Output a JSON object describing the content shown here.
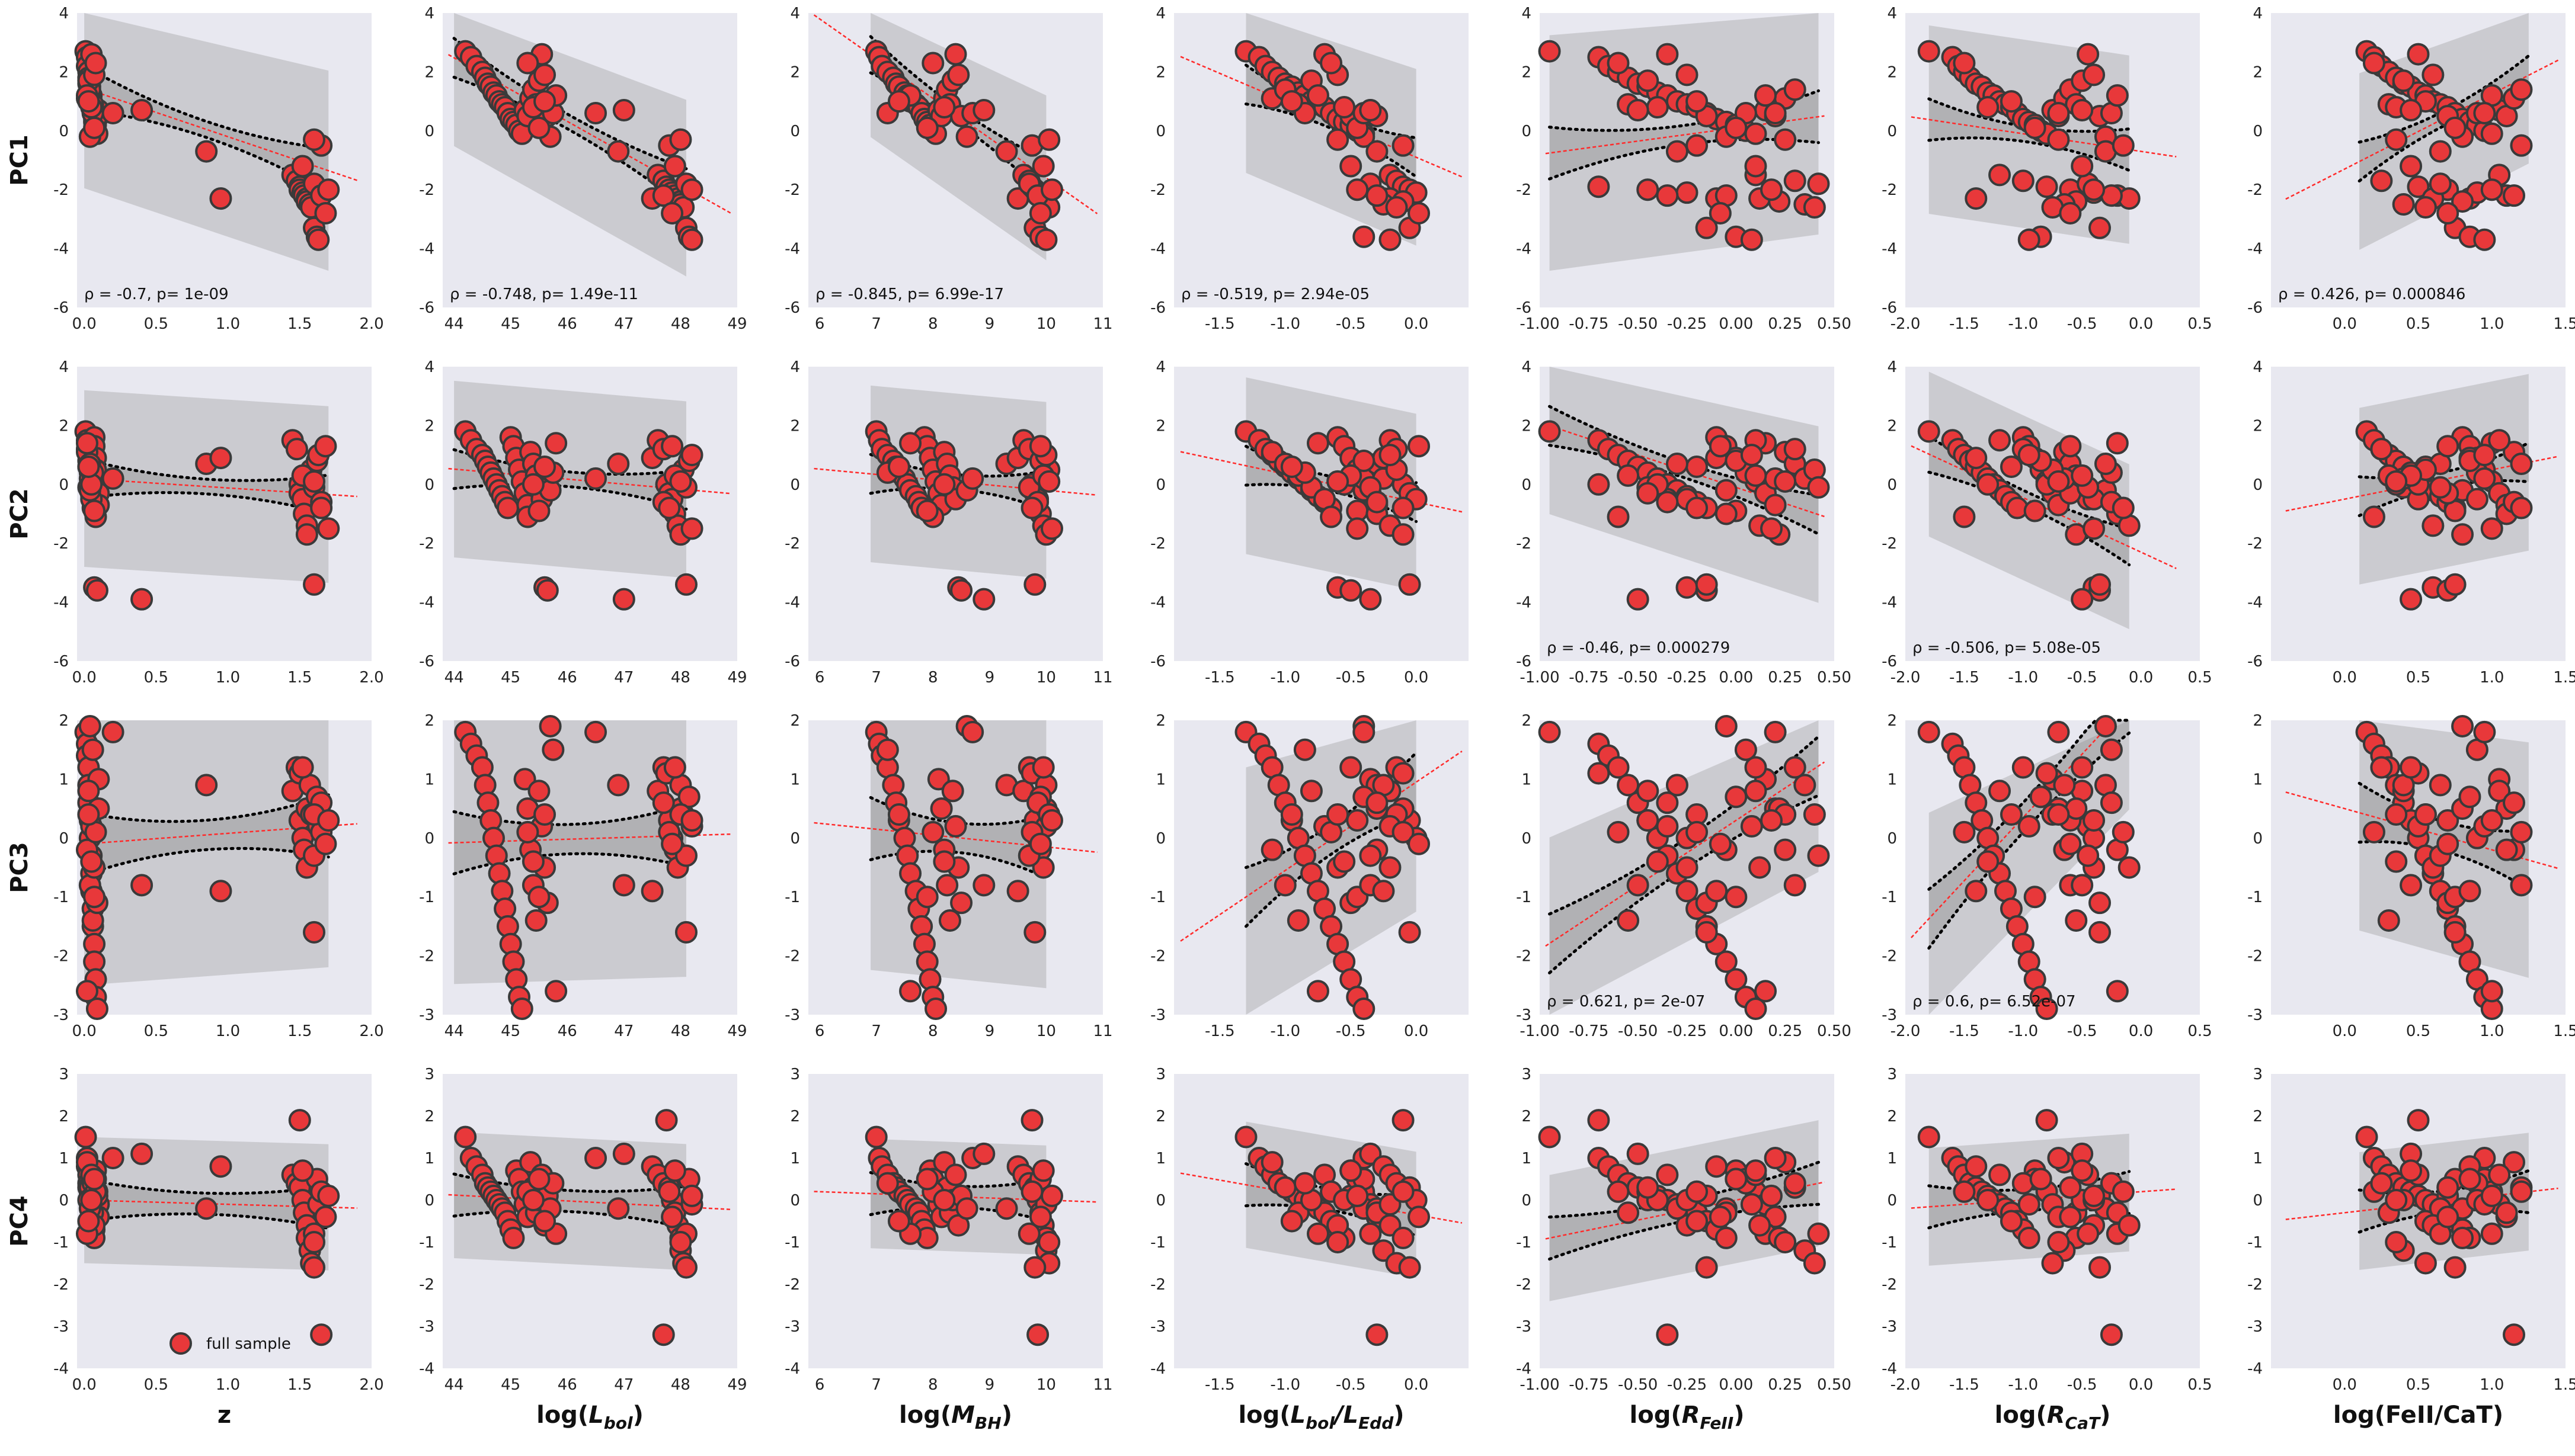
{
  "chart_data": {
    "type": "scatter",
    "layout": {
      "rows": 4,
      "cols": 7
    },
    "grid": true,
    "colors": {
      "background": "#e8e8f0",
      "marker": "#e8383a",
      "marker_edge": "#3a3a3a",
      "fit_line": "#ff2a2a",
      "band": "#a8a8a8",
      "confidence": "#000000"
    },
    "legend": {
      "label": "full sample",
      "placement": "bottom-center of PC4 vs z"
    },
    "columns": [
      {
        "xlabel": "z",
        "xlim": [
          -0.05,
          2.0
        ],
        "xticks": [
          "0.0",
          "0.5",
          "1.0",
          "1.5",
          "2.0"
        ],
        "xtick_values": [
          0,
          0.5,
          1,
          1.5,
          2
        ],
        "fit_range": [
          0,
          1.9
        ],
        "band_range": [
          0,
          1.7
        ]
      },
      {
        "xlabel": "log(L_bol)",
        "xlim": [
          43.8,
          49.0
        ],
        "xticks": [
          "44",
          "45",
          "46",
          "47",
          "48",
          "49"
        ],
        "xtick_values": [
          44,
          45,
          46,
          47,
          48,
          49
        ],
        "fit_range": [
          43.9,
          48.9
        ],
        "band_range": [
          44,
          48.1
        ]
      },
      {
        "xlabel": "log(M_BH)",
        "xlim": [
          5.8,
          11.0
        ],
        "xticks": [
          "6",
          "7",
          "8",
          "9",
          "10",
          "11"
        ],
        "xtick_values": [
          6,
          7,
          8,
          9,
          10,
          11
        ],
        "fit_range": [
          5.9,
          10.9
        ],
        "band_range": [
          6.9,
          10.0
        ]
      },
      {
        "xlabel": "log(L_bol/L_Edd)",
        "xlim": [
          -1.85,
          0.4
        ],
        "xticks": [
          "-1.5",
          "-1.0",
          "-0.5",
          "0.0"
        ],
        "xtick_values": [
          -1.5,
          -1.0,
          -0.5,
          0.0
        ],
        "fit_range": [
          -1.8,
          0.35
        ],
        "band_range": [
          -1.3,
          0.0
        ]
      },
      {
        "xlabel": "log(R_FeII)",
        "xlim": [
          -1.0,
          0.5
        ],
        "xticks": [
          "-1.00",
          "-0.75",
          "-0.50",
          "-0.25",
          "0.00",
          "0.25",
          "0.50"
        ],
        "xtick_values": [
          -1.0,
          -0.75,
          -0.5,
          -0.25,
          0.0,
          0.25,
          0.5
        ],
        "fit_range": [
          -0.97,
          0.45
        ],
        "band_range": [
          -0.95,
          0.42
        ]
      },
      {
        "xlabel": "log(R_CaT)",
        "xlim": [
          -2.0,
          0.5
        ],
        "xticks": [
          "-2.0",
          "-1.5",
          "-1.0",
          "-0.5",
          "0.0",
          "0.5"
        ],
        "xtick_values": [
          -2.0,
          -1.5,
          -1.0,
          -0.5,
          0.0,
          0.5
        ],
        "fit_range": [
          -1.95,
          0.3
        ],
        "band_range": [
          -1.8,
          -0.1
        ]
      },
      {
        "xlabel": "log(FeII/CaT)",
        "xlim": [
          -0.5,
          1.5
        ],
        "xticks": [
          "0.0",
          "0.5",
          "1.0",
          "1.5"
        ],
        "xtick_values": [
          0.0,
          0.5,
          1.0,
          1.5
        ],
        "fit_range": [
          -0.4,
          1.45
        ],
        "band_range": [
          0.1,
          1.25
        ]
      }
    ],
    "rows": [
      {
        "ylabel": "PC1",
        "ylim": [
          -6,
          4
        ],
        "yticks": [
          "-6",
          "-4",
          "-2",
          "0",
          "2",
          "4"
        ],
        "ytick_values": [
          -6,
          -4,
          -2,
          0,
          2,
          4
        ]
      },
      {
        "ylabel": "PC2",
        "ylim": [
          -6,
          4
        ],
        "yticks": [
          "-6",
          "-4",
          "-2",
          "0",
          "2",
          "4"
        ],
        "ytick_values": [
          -6,
          -4,
          -2,
          0,
          2,
          4
        ]
      },
      {
        "ylabel": "PC3",
        "ylim": [
          -3,
          2
        ],
        "yticks": [
          "-3",
          "-2",
          "-1",
          "0",
          "1",
          "2"
        ],
        "ytick_values": [
          -3,
          -2,
          -1,
          0,
          1,
          2
        ]
      },
      {
        "ylabel": "PC4",
        "ylim": [
          -4,
          3
        ],
        "yticks": [
          "-4",
          "-3",
          "-2",
          "-1",
          "0",
          "1",
          "2",
          "3"
        ],
        "ytick_values": [
          -4,
          -3,
          -2,
          -1,
          0,
          1,
          2,
          3
        ]
      }
    ],
    "annotations": [
      {
        "row": 0,
        "col": 0,
        "text": "ρ = -0.7, p= 1e-09"
      },
      {
        "row": 0,
        "col": 1,
        "text": "ρ = -0.748, p= 1.49e-11"
      },
      {
        "row": 0,
        "col": 2,
        "text": "ρ = -0.845, p= 6.99e-17"
      },
      {
        "row": 0,
        "col": 3,
        "text": "ρ = -0.519, p= 2.94e-05"
      },
      {
        "row": 0,
        "col": 6,
        "text": "ρ = 0.426, p= 0.000846"
      },
      {
        "row": 1,
        "col": 4,
        "text": "ρ = -0.46, p= 0.000279"
      },
      {
        "row": 1,
        "col": 5,
        "text": "ρ = -0.506, p= 5.08e-05"
      },
      {
        "row": 2,
        "col": 4,
        "text": "ρ = 0.621, p= 2e-07"
      },
      {
        "row": 2,
        "col": 5,
        "text": "ρ = 0.6, p= 6.52e-07"
      }
    ],
    "fits": [
      [
        {
          "slope": -1.65,
          "intercept": 1.45
        },
        {
          "slope": -1.08,
          "intercept": 50.0
        },
        {
          "slope": -1.35,
          "intercept": 11.9
        },
        {
          "slope": -1.9,
          "intercept": -0.9
        },
        {
          "slope": 0.9,
          "intercept": 0.1
        },
        {
          "slope": -0.6,
          "intercept": -0.7
        },
        {
          "slope": 2.55,
          "intercept": -1.3
        }
      ],
      [
        {
          "slope": -0.32,
          "intercept": 0.2
        },
        {
          "slope": -0.17,
          "intercept": 8.0
        },
        {
          "slope": -0.18,
          "intercept": 1.6
        },
        {
          "slope": -0.95,
          "intercept": -0.6
        },
        {
          "slope": -2.2,
          "intercept": -0.1
        },
        {
          "slope": -1.85,
          "intercept": -2.3
        },
        {
          "slope": 1.0,
          "intercept": -0.5
        }
      ],
      [
        {
          "slope": 0.18,
          "intercept": -0.1
        },
        {
          "slope": 0.03,
          "intercept": -1.4
        },
        {
          "slope": -0.1,
          "intercept": 0.85
        },
        {
          "slope": 1.5,
          "intercept": 0.95
        },
        {
          "slope": 2.2,
          "intercept": 0.3
        },
        {
          "slope": 2.15,
          "intercept": 2.5
        },
        {
          "slope": -0.7,
          "intercept": 0.5
        }
      ],
      [
        {
          "slope": -0.1,
          "intercept": 0.0
        },
        {
          "slope": -0.07,
          "intercept": 3.2
        },
        {
          "slope": -0.05,
          "intercept": 0.5
        },
        {
          "slope": -0.55,
          "intercept": -0.35
        },
        {
          "slope": 0.95,
          "intercept": 0.0
        },
        {
          "slope": 0.2,
          "intercept": 0.2
        },
        {
          "slope": 0.4,
          "intercept": -0.3
        }
      ]
    ],
    "series": [
      {
        "z": [
          0.01,
          0.02,
          0.02,
          0.03,
          0.03,
          0.03,
          0.04,
          0.04,
          0.05,
          0.05,
          0.05,
          0.06,
          0.06,
          0.07,
          0.07,
          0.08,
          0.08,
          0.09,
          0.1,
          0.1,
          0.02,
          0.04,
          0.06,
          0.03,
          0.05,
          0.07,
          0.09,
          0.04,
          0.06,
          0.02,
          0.08,
          0.05,
          0.03,
          0.07,
          0.2,
          0.4,
          0.85,
          0.95,
          1.45,
          1.48,
          1.5,
          1.5,
          1.52,
          1.53,
          1.55,
          1.55,
          1.57,
          1.58,
          1.6,
          1.6,
          1.62,
          1.63,
          1.65,
          1.65,
          1.52,
          1.6,
          1.68,
          1.7
        ],
        "log_Lbol": [
          44.2,
          44.3,
          44.4,
          44.5,
          44.55,
          44.6,
          44.65,
          44.7,
          44.75,
          44.8,
          44.85,
          44.9,
          44.95,
          45.0,
          45.05,
          45.1,
          45.15,
          45.2,
          45.25,
          45.3,
          45.35,
          45.4,
          45.45,
          45.5,
          45.55,
          45.6,
          45.65,
          45.7,
          45.75,
          45.8,
          45.3,
          45.4,
          45.6,
          45.5,
          46.5,
          47.0,
          46.9,
          47.5,
          47.6,
          47.7,
          47.75,
          47.8,
          47.85,
          47.9,
          47.95,
          48.0,
          48.0,
          48.05,
          48.1,
          48.1,
          48.15,
          48.2,
          47.7,
          47.8,
          47.9,
          48.0,
          47.85,
          48.2
        ],
        "log_MBH": [
          7.0,
          7.05,
          7.1,
          7.2,
          7.3,
          7.35,
          7.4,
          7.5,
          7.55,
          7.6,
          7.7,
          7.75,
          7.8,
          7.85,
          7.9,
          7.95,
          8.0,
          8.05,
          8.1,
          8.15,
          8.2,
          8.25,
          8.3,
          8.35,
          8.4,
          8.45,
          8.5,
          8.6,
          7.2,
          7.6,
          8.0,
          8.2,
          7.4,
          7.9,
          8.7,
          8.9,
          9.3,
          9.5,
          9.6,
          9.7,
          9.75,
          9.8,
          9.85,
          9.9,
          9.95,
          10.0,
          10.0,
          10.05,
          9.7,
          9.8,
          9.9,
          10.0,
          9.85,
          9.75,
          9.95,
          10.05,
          9.9,
          10.1
        ],
        "log_Edd": [
          -1.3,
          -1.2,
          -1.15,
          -1.1,
          -1.05,
          -1.0,
          -0.95,
          -0.9,
          -0.85,
          -0.8,
          -0.75,
          -0.7,
          -0.65,
          -0.6,
          -0.55,
          -0.5,
          -0.45,
          -0.4,
          -0.35,
          -0.3,
          -1.1,
          -1.0,
          -0.9,
          -0.8,
          -0.7,
          -0.6,
          -0.5,
          -0.4,
          -0.85,
          -0.75,
          -0.65,
          -0.55,
          -0.95,
          -0.45,
          -0.4,
          -0.35,
          -0.3,
          -0.25,
          -0.2,
          -0.15,
          -0.1,
          -0.05,
          0.0,
          -0.3,
          -0.2,
          -0.1,
          -0.25,
          -0.15,
          -0.35,
          -0.05,
          -0.4,
          -0.2,
          -0.3,
          -0.1,
          -0.5,
          -0.6,
          0.02,
          -0.45
        ],
        "log_RFeII": [
          -0.95,
          -0.7,
          -0.65,
          -0.6,
          -0.55,
          -0.5,
          -0.45,
          -0.4,
          -0.35,
          -0.3,
          -0.25,
          -0.2,
          -0.15,
          -0.1,
          -0.05,
          0.0,
          0.05,
          0.1,
          0.15,
          0.2,
          0.25,
          0.3,
          -0.55,
          -0.45,
          -0.35,
          -0.25,
          -0.15,
          -0.05,
          0.05,
          0.15,
          -0.6,
          -0.4,
          -0.2,
          0.0,
          0.2,
          -0.5,
          -0.3,
          -0.1,
          0.1,
          0.3,
          -0.7,
          -0.45,
          -0.25,
          -0.05,
          0.12,
          0.22,
          0.35,
          0.4,
          0.42,
          -0.15,
          0.0,
          0.08,
          -0.35,
          -0.2,
          0.1,
          0.25,
          -0.08,
          0.18
        ],
        "log_RCaT": [
          -1.8,
          -1.6,
          -1.55,
          -1.5,
          -1.45,
          -1.4,
          -1.35,
          -1.3,
          -1.25,
          -1.2,
          -1.15,
          -1.1,
          -1.05,
          -1.0,
          -0.95,
          -0.9,
          -0.85,
          -0.8,
          -0.75,
          -0.7,
          -0.65,
          -0.6,
          -0.55,
          -0.5,
          -0.45,
          -0.4,
          -0.35,
          -0.3,
          -0.25,
          -0.2,
          -1.5,
          -1.3,
          -1.1,
          -0.9,
          -0.7,
          -0.5,
          -0.3,
          -1.4,
          -1.2,
          -1.0,
          -0.8,
          -0.6,
          -0.4,
          -0.2,
          -0.1,
          -0.55,
          -0.65,
          -0.75,
          -0.45,
          -0.35,
          -0.85,
          -0.95,
          -0.25,
          -0.15,
          -0.5,
          -0.7,
          -0.6,
          -0.4
        ],
        "log_FeIICaT": [
          0.15,
          0.2,
          0.25,
          0.3,
          0.35,
          0.4,
          0.45,
          0.5,
          0.55,
          0.6,
          0.65,
          0.7,
          0.75,
          0.8,
          0.85,
          0.9,
          0.95,
          1.0,
          1.05,
          1.1,
          1.15,
          1.2,
          0.3,
          0.4,
          0.5,
          0.6,
          0.7,
          0.8,
          0.9,
          1.0,
          0.2,
          0.35,
          0.55,
          0.75,
          0.95,
          0.45,
          0.65,
          0.85,
          1.05,
          0.25,
          0.5,
          0.7,
          0.9,
          1.1,
          0.6,
          0.8,
          0.4,
          0.55,
          0.65,
          0.75,
          0.85,
          0.95,
          1.15,
          1.2,
          0.45,
          0.35,
          0.7,
          1.0
        ],
        "PC1": [
          2.7,
          2.5,
          2.2,
          2.0,
          1.8,
          1.6,
          1.5,
          1.3,
          1.2,
          1.0,
          0.9,
          0.8,
          0.6,
          0.4,
          0.3,
          0.2,
          0.0,
          -0.1,
          0.7,
          0.5,
          1.1,
          1.4,
          0.9,
          1.7,
          2.6,
          1.9,
          0.5,
          -0.2,
          0.6,
          1.2,
          2.3,
          0.8,
          1.0,
          0.1,
          0.6,
          0.7,
          -0.7,
          -2.3,
          -1.5,
          -1.7,
          -1.9,
          -2.0,
          -2.1,
          -2.2,
          -2.3,
          -2.4,
          -2.5,
          -2.6,
          -1.8,
          -3.3,
          -3.6,
          -3.7,
          -2.2,
          -0.5,
          -1.2,
          -0.3,
          -2.8,
          -2.0
        ],
        "PC2": [
          1.8,
          1.5,
          1.2,
          1.0,
          0.8,
          0.6,
          0.4,
          0.2,
          0.0,
          -0.2,
          -0.4,
          -0.6,
          -0.8,
          1.6,
          1.3,
          0.9,
          0.5,
          0.1,
          -0.3,
          -0.7,
          1.1,
          0.7,
          0.3,
          -0.1,
          -0.5,
          -3.5,
          -3.6,
          -0.2,
          0.4,
          1.4,
          -1.1,
          0.0,
          0.6,
          -0.9,
          0.2,
          -3.9,
          0.7,
          0.9,
          1.5,
          1.2,
          0.0,
          -0.3,
          -0.5,
          -1.0,
          -1.4,
          -1.7,
          0.2,
          0.5,
          -0.1,
          -3.4,
          0.8,
          1.0,
          -0.6,
          -0.8,
          0.3,
          0.1,
          1.3,
          -1.5
        ],
        "PC3": [
          1.8,
          1.6,
          1.4,
          1.2,
          0.9,
          0.6,
          0.3,
          0.0,
          -0.3,
          -0.6,
          -0.9,
          -1.2,
          -1.5,
          -1.8,
          -2.1,
          -2.4,
          -2.7,
          -2.9,
          1.0,
          0.5,
          -0.2,
          -0.8,
          -1.4,
          0.8,
          0.2,
          -0.5,
          -1.1,
          1.9,
          1.5,
          -2.6,
          0.1,
          -0.4,
          0.4,
          -1.0,
          1.8,
          -0.8,
          0.9,
          -0.9,
          0.8,
          1.2,
          1.1,
          0.3,
          0.0,
          -0.2,
          -0.5,
          0.5,
          0.9,
          0.4,
          -0.3,
          -1.6,
          0.7,
          0.2,
          0.6,
          0.1,
          1.2,
          0.4,
          -0.1,
          0.3
        ],
        "PC4": [
          1.5,
          1.0,
          0.8,
          0.6,
          0.4,
          0.3,
          0.2,
          0.1,
          0.0,
          -0.1,
          -0.2,
          -0.3,
          -0.5,
          -0.7,
          -0.9,
          0.7,
          0.5,
          0.2,
          -0.1,
          -0.4,
          0.9,
          0.3,
          -0.3,
          0.0,
          0.6,
          -0.6,
          0.1,
          -0.2,
          0.4,
          -0.8,
          0.2,
          0.0,
          -0.5,
          0.5,
          1.0,
          1.1,
          -0.2,
          0.8,
          0.6,
          0.4,
          1.9,
          0.3,
          0.0,
          -0.3,
          -0.6,
          -0.9,
          -1.2,
          -1.5,
          -0.8,
          -1.6,
          0.5,
          -0.1,
          -3.2,
          0.2,
          0.7,
          -1.0,
          -0.4,
          0.1
        ]
      }
    ]
  }
}
